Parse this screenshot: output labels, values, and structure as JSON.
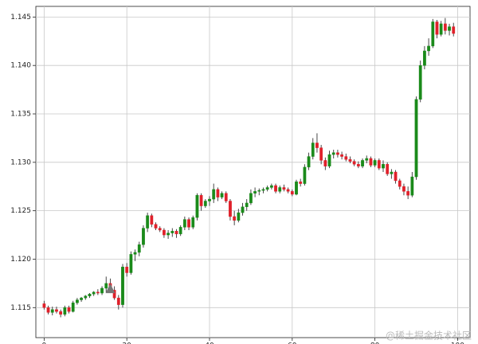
{
  "chart_data": {
    "type": "candlestick",
    "x": [
      0,
      1,
      2,
      3,
      4,
      5,
      6,
      7,
      8,
      9,
      10,
      11,
      12,
      13,
      14,
      15,
      16,
      17,
      18,
      19,
      20,
      21,
      22,
      23,
      24,
      25,
      26,
      27,
      28,
      29,
      30,
      31,
      32,
      33,
      34,
      35,
      36,
      37,
      38,
      39,
      40,
      41,
      42,
      43,
      44,
      45,
      46,
      47,
      48,
      49,
      50,
      51,
      52,
      53,
      54,
      55,
      56,
      57,
      58,
      59,
      60,
      61,
      62,
      63,
      64,
      65,
      66,
      67,
      68,
      69,
      70,
      71,
      72,
      73,
      74,
      75,
      76,
      77,
      78,
      79,
      80,
      81,
      82,
      83,
      84,
      85,
      86,
      87,
      88,
      89,
      90,
      91,
      92,
      93,
      94,
      95,
      96,
      97,
      98,
      99
    ],
    "open": [
      1.1154,
      1.115,
      1.1145,
      1.1148,
      1.1146,
      1.1143,
      1.115,
      1.1146,
      1.1155,
      1.1158,
      1.116,
      1.1162,
      1.1164,
      1.1166,
      1.1165,
      1.117,
      1.1175,
      1.1168,
      1.116,
      1.1153,
      1.1192,
      1.1186,
      1.1205,
      1.1207,
      1.1215,
      1.1232,
      1.1245,
      1.1236,
      1.1232,
      1.123,
      1.1225,
      1.1227,
      1.1229,
      1.1226,
      1.1233,
      1.1241,
      1.1233,
      1.1243,
      1.1266,
      1.1255,
      1.126,
      1.1262,
      1.1272,
      1.1264,
      1.1268,
      1.126,
      1.1244,
      1.124,
      1.1248,
      1.1254,
      1.1258,
      1.1268,
      1.127,
      1.1271,
      1.1272,
      1.1274,
      1.1276,
      1.127,
      1.1274,
      1.1272,
      1.127,
      1.1267,
      1.128,
      1.1278,
      1.1295,
      1.1306,
      1.132,
      1.1315,
      1.1302,
      1.1296,
      1.1308,
      1.131,
      1.1308,
      1.1306,
      1.1303,
      1.1301,
      1.1298,
      1.1296,
      1.1302,
      1.1304,
      1.1297,
      1.1302,
      1.1294,
      1.1298,
      1.1288,
      1.129,
      1.1281,
      1.1275,
      1.127,
      1.1266,
      1.1285,
      1.1365,
      1.14,
      1.1415,
      1.142,
      1.1445,
      1.1432,
      1.1443,
      1.1436,
      1.144
    ],
    "high": [
      1.1157,
      1.1152,
      1.1151,
      1.1151,
      1.1148,
      1.1152,
      1.1152,
      1.1157,
      1.116,
      1.1161,
      1.1163,
      1.1165,
      1.1167,
      1.1169,
      1.1172,
      1.1182,
      1.118,
      1.1172,
      1.1163,
      1.1195,
      1.1196,
      1.1208,
      1.121,
      1.1218,
      1.1235,
      1.1248,
      1.1247,
      1.1238,
      1.1234,
      1.1232,
      1.123,
      1.1232,
      1.1231,
      1.1235,
      1.1244,
      1.1243,
      1.1245,
      1.1268,
      1.1268,
      1.1262,
      1.1265,
      1.1278,
      1.1274,
      1.127,
      1.127,
      1.1262,
      1.125,
      1.1252,
      1.1258,
      1.1262,
      1.1272,
      1.1274,
      1.1273,
      1.1274,
      1.1276,
      1.1278,
      1.1278,
      1.1276,
      1.1277,
      1.1274,
      1.1272,
      1.1282,
      1.1283,
      1.1298,
      1.131,
      1.1325,
      1.133,
      1.1318,
      1.1305,
      1.1312,
      1.1313,
      1.1313,
      1.1311,
      1.1309,
      1.1306,
      1.1303,
      1.1301,
      1.1304,
      1.1307,
      1.1306,
      1.1304,
      1.1304,
      1.1302,
      1.13,
      1.1293,
      1.1292,
      1.1283,
      1.1278,
      1.1275,
      1.129,
      1.1368,
      1.1405,
      1.142,
      1.1428,
      1.1448,
      1.1447,
      1.1446,
      1.1449,
      1.1443,
      1.1444
    ],
    "low": [
      1.1148,
      1.1143,
      1.1142,
      1.1144,
      1.114,
      1.1141,
      1.1144,
      1.1145,
      1.1153,
      1.1156,
      1.1158,
      1.116,
      1.1162,
      1.1163,
      1.1163,
      1.1166,
      1.1165,
      1.1158,
      1.1148,
      1.115,
      1.1182,
      1.1184,
      1.1198,
      1.1203,
      1.1212,
      1.1228,
      1.1233,
      1.123,
      1.1228,
      1.1222,
      1.1221,
      1.1223,
      1.1222,
      1.1224,
      1.123,
      1.123,
      1.1231,
      1.124,
      1.125,
      1.1253,
      1.1255,
      1.1258,
      1.126,
      1.1262,
      1.1258,
      1.124,
      1.1235,
      1.1238,
      1.1245,
      1.125,
      1.1256,
      1.1264,
      1.1266,
      1.1268,
      1.127,
      1.1272,
      1.1268,
      1.1268,
      1.127,
      1.1268,
      1.1265,
      1.1266,
      1.1275,
      1.1276,
      1.1292,
      1.1303,
      1.131,
      1.1298,
      1.1292,
      1.1294,
      1.1304,
      1.1305,
      1.1303,
      1.1301,
      1.1299,
      1.1296,
      1.1294,
      1.1294,
      1.1299,
      1.1295,
      1.1295,
      1.1292,
      1.129,
      1.1286,
      1.1283,
      1.1278,
      1.1272,
      1.1266,
      1.1262,
      1.1264,
      1.1282,
      1.1362,
      1.1396,
      1.141,
      1.1418,
      1.1428,
      1.143,
      1.1432,
      1.1431,
      1.143
    ],
    "close": [
      1.115,
      1.1145,
      1.1148,
      1.1146,
      1.1143,
      1.115,
      1.1146,
      1.1155,
      1.1158,
      1.116,
      1.1162,
      1.1164,
      1.1166,
      1.1165,
      1.117,
      1.1175,
      1.1168,
      1.116,
      1.1153,
      1.1192,
      1.1186,
      1.1205,
      1.1207,
      1.1215,
      1.1232,
      1.1245,
      1.1236,
      1.1232,
      1.123,
      1.1225,
      1.1227,
      1.1229,
      1.1226,
      1.1233,
      1.1241,
      1.1233,
      1.1243,
      1.1266,
      1.1255,
      1.126,
      1.1262,
      1.1272,
      1.1264,
      1.1268,
      1.126,
      1.1244,
      1.124,
      1.1248,
      1.1254,
      1.1258,
      1.1268,
      1.127,
      1.1271,
      1.1272,
      1.1274,
      1.1276,
      1.127,
      1.1274,
      1.1272,
      1.127,
      1.1267,
      1.128,
      1.1278,
      1.1295,
      1.1306,
      1.132,
      1.1315,
      1.1302,
      1.1296,
      1.1308,
      1.131,
      1.1308,
      1.1306,
      1.1303,
      1.1301,
      1.1298,
      1.1296,
      1.1302,
      1.1304,
      1.1297,
      1.1302,
      1.1294,
      1.1298,
      1.1288,
      1.129,
      1.1281,
      1.1275,
      1.127,
      1.1266,
      1.1285,
      1.1365,
      1.14,
      1.1415,
      1.142,
      1.1445,
      1.1432,
      1.1443,
      1.1436,
      1.144,
      1.1433
    ],
    "up_color": "#1a8a1a",
    "down_color": "#e0202a",
    "marker": {
      "x": 16,
      "y": 1.1169,
      "color": "#777777"
    },
    "xlim": [
      -2,
      103
    ],
    "ylim": [
      1.1119,
      1.1461
    ],
    "xticks": [
      0,
      20,
      40,
      60,
      80,
      100
    ],
    "yticks": [
      1.115,
      {
        "value": 1.12,
        "label": "1.120"
      },
      1.125,
      {
        "value": 1.13,
        "label": "1.130"
      },
      1.135,
      {
        "value": 1.14,
        "label": "1.140"
      },
      1.145
    ],
    "grid": true
  },
  "watermark": "@稀土掘金技术社区"
}
